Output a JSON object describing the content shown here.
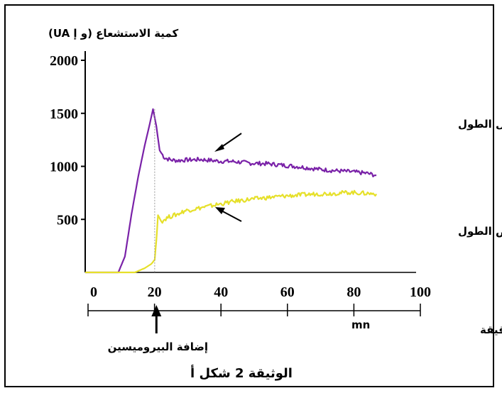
{
  "chart_data": {
    "type": "line",
    "ylabel": "كمية الاستشعاع (و إ UA)",
    "xlabel": "الزمن بالدقيقة",
    "xunit": "mn",
    "ylim": [
      0,
      2000
    ],
    "xlim": [
      0,
      100
    ],
    "yticks": [
      "2000",
      "1500",
      "1000",
      "500"
    ],
    "xticks": [
      "0",
      "20",
      "40",
      "60",
      "80",
      "100"
    ],
    "event": {
      "label": "إضافة البيروميسين",
      "x": 21
    },
    "caption": "الوثيقة 2 شكل أ",
    "series": [
      {
        "name": "باستعمال ARNm كامل الطول",
        "color": "#7a22a8",
        "points": [
          [
            0,
            0
          ],
          [
            10,
            0
          ],
          [
            12,
            150
          ],
          [
            14,
            550
          ],
          [
            16,
            900
          ],
          [
            18,
            1200
          ],
          [
            19.5,
            1400
          ],
          [
            20.5,
            1540
          ],
          [
            21.5,
            1380
          ],
          [
            22.5,
            1150
          ],
          [
            24,
            1080
          ],
          [
            26,
            1060
          ],
          [
            28,
            1055
          ],
          [
            30,
            1060
          ],
          [
            35,
            1065
          ],
          [
            40,
            1050
          ],
          [
            45,
            1045
          ],
          [
            50,
            1030
          ],
          [
            55,
            1025
          ],
          [
            60,
            1010
          ],
          [
            65,
            995
          ],
          [
            70,
            975
          ],
          [
            75,
            960
          ],
          [
            80,
            950
          ],
          [
            85,
            935
          ],
          [
            88,
            915
          ]
        ]
      },
      {
        "name": "باستعمال ARNm ناقص الطول",
        "color": "#e6e02a",
        "points": [
          [
            0,
            0
          ],
          [
            15,
            0
          ],
          [
            18,
            40
          ],
          [
            20,
            80
          ],
          [
            21,
            120
          ],
          [
            21.5,
            300
          ],
          [
            22,
            540
          ],
          [
            23,
            480
          ],
          [
            25,
            520
          ],
          [
            28,
            550
          ],
          [
            30,
            580
          ],
          [
            35,
            610
          ],
          [
            40,
            640
          ],
          [
            45,
            670
          ],
          [
            50,
            690
          ],
          [
            55,
            705
          ],
          [
            60,
            720
          ],
          [
            65,
            730
          ],
          [
            70,
            740
          ],
          [
            75,
            745
          ],
          [
            80,
            755
          ],
          [
            85,
            745
          ],
          [
            88,
            740
          ]
        ]
      }
    ],
    "grid": false
  }
}
